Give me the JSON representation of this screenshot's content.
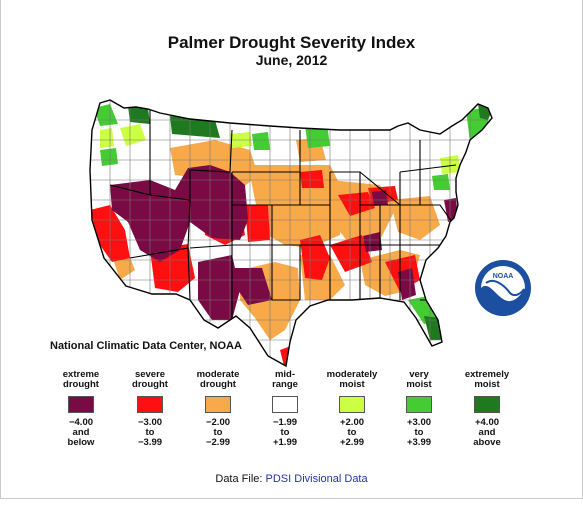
{
  "title": "Palmer Drought Severity Index",
  "subtitle": "June, 2012",
  "credit": "National Climatic Data Center, NOAA",
  "logo_text": "NOAA",
  "legend": [
    {
      "label": "extreme\ndrought",
      "range": "−4.00\nand\nbelow",
      "color": "#7a0a43"
    },
    {
      "label": "severe\ndrought",
      "range": "−3.00\nto\n−3.99",
      "color": "#ff1010"
    },
    {
      "label": "moderate\ndrought",
      "range": "−2.00\nto\n−2.99",
      "color": "#f8a94a"
    },
    {
      "label": "mid-\nrange",
      "range": "−1.99\nto\n+1.99",
      "color": "#ffffff"
    },
    {
      "label": "moderately\nmoist",
      "range": "+2.00\nto\n+2.99",
      "color": "#ccff44"
    },
    {
      "label": "very\nmoist",
      "range": "+3.00\nto\n+3.99",
      "color": "#44cc33"
    },
    {
      "label": "extremely\nmoist",
      "range": "+4.00\nand\nabove",
      "color": "#1f7a1f"
    }
  ],
  "footer": {
    "prefix": "Data File:",
    "link_text": "PDSI Divisional Data"
  }
}
